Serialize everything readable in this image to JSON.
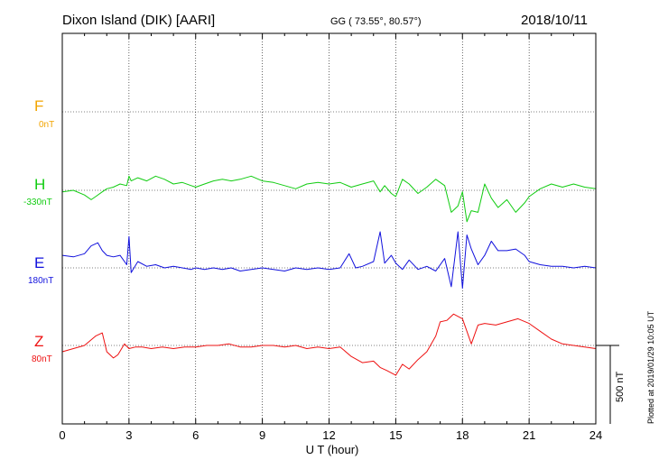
{
  "header": {
    "station": "Dixon Island (DIK)  [AARI]",
    "coords": "GG ( 73.55°,  80.57°)",
    "date": "2018/10/11"
  },
  "components": [
    {
      "key": "F",
      "label": "F",
      "baseline": "0nT",
      "color": "#f2a400"
    },
    {
      "key": "H",
      "label": "H",
      "baseline": "-330nT",
      "color": "#11cc11"
    },
    {
      "key": "E",
      "label": "E",
      "baseline": "180nT",
      "color": "#1111dd"
    },
    {
      "key": "Z",
      "label": "Z",
      "baseline": "80nT",
      "color": "#ee1111"
    }
  ],
  "scale_bar": {
    "label": "500 nT",
    "value": 500
  },
  "plotted_note": "Plotted at 2019/01/29 10:05 UT",
  "chart_data": {
    "type": "line",
    "title": "Dixon Island (DIK)  [AARI]",
    "xlabel": "U T (hour)",
    "xlim": [
      0,
      24
    ],
    "xticks": [
      "0",
      "3",
      "6",
      "9",
      "12",
      "15",
      "18",
      "21",
      "24"
    ],
    "ylabel": "",
    "grid": true,
    "series": [
      {
        "name": "H",
        "baseline_nT": -330,
        "color": "#11cc11",
        "x": [
          0,
          0.5,
          1.0,
          1.3,
          1.5,
          1.8,
          2.0,
          2.3,
          2.6,
          2.9,
          3.0,
          3.1,
          3.4,
          3.8,
          4.2,
          4.6,
          5.0,
          5.4,
          5.8,
          6.0,
          6.4,
          6.8,
          7.2,
          7.6,
          8.0,
          8.5,
          9.0,
          9.5,
          10.0,
          10.5,
          11.0,
          11.5,
          12.0,
          12.5,
          13.0,
          13.5,
          14.0,
          14.3,
          14.5,
          14.8,
          15.0,
          15.3,
          15.6,
          16.0,
          16.4,
          16.8,
          17.2,
          17.5,
          17.8,
          18.0,
          18.2,
          18.4,
          18.7,
          19.0,
          19.3,
          19.6,
          20.0,
          20.4,
          20.8,
          21.0,
          21.5,
          22.0,
          22.5,
          23.0,
          23.5,
          24.0
        ],
        "y": [
          -10,
          0,
          -30,
          -60,
          -40,
          -10,
          10,
          20,
          40,
          30,
          90,
          60,
          80,
          60,
          90,
          70,
          40,
          50,
          30,
          20,
          40,
          60,
          70,
          60,
          70,
          90,
          60,
          50,
          30,
          10,
          40,
          50,
          40,
          50,
          20,
          40,
          60,
          -10,
          30,
          -20,
          -40,
          70,
          40,
          -20,
          20,
          70,
          30,
          -140,
          -100,
          -10,
          -200,
          -130,
          -140,
          40,
          -50,
          -110,
          -60,
          -140,
          -80,
          -40,
          10,
          40,
          20,
          40,
          20,
          10
        ]
      },
      {
        "name": "E",
        "baseline_nT": 180,
        "color": "#1111dd",
        "x": [
          0,
          0.5,
          1.0,
          1.3,
          1.6,
          1.8,
          2.0,
          2.3,
          2.6,
          2.9,
          3.0,
          3.1,
          3.4,
          3.8,
          4.2,
          4.6,
          5.0,
          5.4,
          5.8,
          6.0,
          6.4,
          6.8,
          7.2,
          7.6,
          8.0,
          8.5,
          9.0,
          9.5,
          10.0,
          10.5,
          11.0,
          11.5,
          12.0,
          12.5,
          12.9,
          13.2,
          13.5,
          14.0,
          14.3,
          14.5,
          14.8,
          15.0,
          15.3,
          15.6,
          16.0,
          16.4,
          16.8,
          17.2,
          17.5,
          17.8,
          18.0,
          18.2,
          18.4,
          18.7,
          19.0,
          19.3,
          19.6,
          20.0,
          20.4,
          20.8,
          21.0,
          21.5,
          22.0,
          22.5,
          23.0,
          23.5,
          24.0
        ],
        "y": [
          80,
          70,
          90,
          140,
          160,
          110,
          80,
          70,
          80,
          20,
          200,
          -30,
          40,
          10,
          20,
          0,
          10,
          0,
          -10,
          0,
          -10,
          0,
          -10,
          0,
          -20,
          -10,
          0,
          -10,
          -20,
          0,
          -10,
          0,
          -10,
          0,
          90,
          0,
          10,
          40,
          230,
          30,
          80,
          30,
          -10,
          50,
          -10,
          10,
          -20,
          60,
          -120,
          230,
          -130,
          210,
          120,
          20,
          80,
          170,
          110,
          110,
          120,
          80,
          40,
          20,
          10,
          10,
          0,
          10,
          0
        ]
      },
      {
        "name": "Z",
        "baseline_nT": 80,
        "color": "#ee1111",
        "x": [
          0,
          0.5,
          1.0,
          1.5,
          1.8,
          2.0,
          2.3,
          2.5,
          2.8,
          3.0,
          3.3,
          3.6,
          4.0,
          4.5,
          5.0,
          5.5,
          6.0,
          6.5,
          7.0,
          7.5,
          8.0,
          8.5,
          9.0,
          9.5,
          10.0,
          10.5,
          11.0,
          11.5,
          12.0,
          12.5,
          13.0,
          13.5,
          14.0,
          14.3,
          14.6,
          15.0,
          15.3,
          15.6,
          16.0,
          16.4,
          16.8,
          17.0,
          17.3,
          17.6,
          18.0,
          18.2,
          18.4,
          18.7,
          19.0,
          19.5,
          20.0,
          20.5,
          21.0,
          21.5,
          22.0,
          22.5,
          23.0,
          23.5,
          24.0
        ],
        "y": [
          -40,
          -20,
          0,
          60,
          80,
          -40,
          -80,
          -60,
          10,
          -20,
          -10,
          -10,
          -20,
          -10,
          -20,
          -10,
          -10,
          0,
          0,
          10,
          -10,
          -10,
          0,
          0,
          -10,
          0,
          -20,
          -10,
          -20,
          -10,
          -70,
          -110,
          -100,
          -140,
          -160,
          -190,
          -120,
          -150,
          -90,
          -40,
          60,
          150,
          160,
          200,
          170,
          90,
          10,
          130,
          140,
          130,
          150,
          170,
          140,
          90,
          40,
          10,
          0,
          -10,
          -20
        ]
      }
    ]
  }
}
